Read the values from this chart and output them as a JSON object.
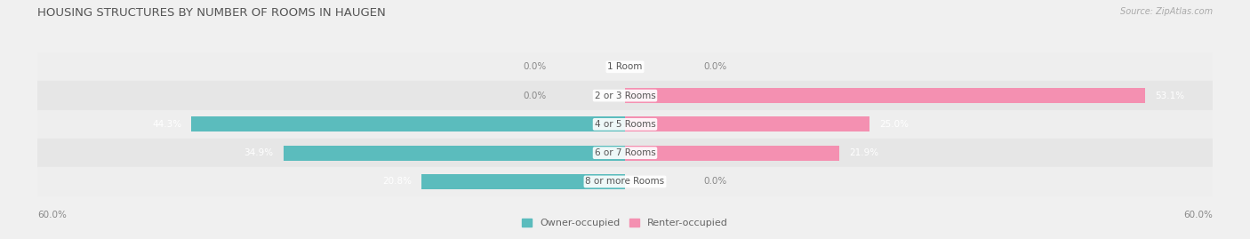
{
  "title": "HOUSING STRUCTURES BY NUMBER OF ROOMS IN HAUGEN",
  "source": "Source: ZipAtlas.com",
  "categories": [
    "1 Room",
    "2 or 3 Rooms",
    "4 or 5 Rooms",
    "6 or 7 Rooms",
    "8 or more Rooms"
  ],
  "owner_values": [
    0.0,
    0.0,
    44.3,
    34.9,
    20.8
  ],
  "renter_values": [
    0.0,
    53.1,
    25.0,
    21.9,
    0.0
  ],
  "owner_color": "#5bbcbd",
  "renter_color": "#f490b1",
  "axis_limit": 60.0,
  "bar_height": 0.52,
  "title_fontsize": 9.5,
  "label_fontsize": 7.5,
  "tick_fontsize": 7.5,
  "legend_fontsize": 8,
  "row_colors": [
    "#eeeeee",
    "#e6e6e6",
    "#eeeeee",
    "#e6e6e6",
    "#eeeeee"
  ],
  "bg_color": "#f0f0f0"
}
